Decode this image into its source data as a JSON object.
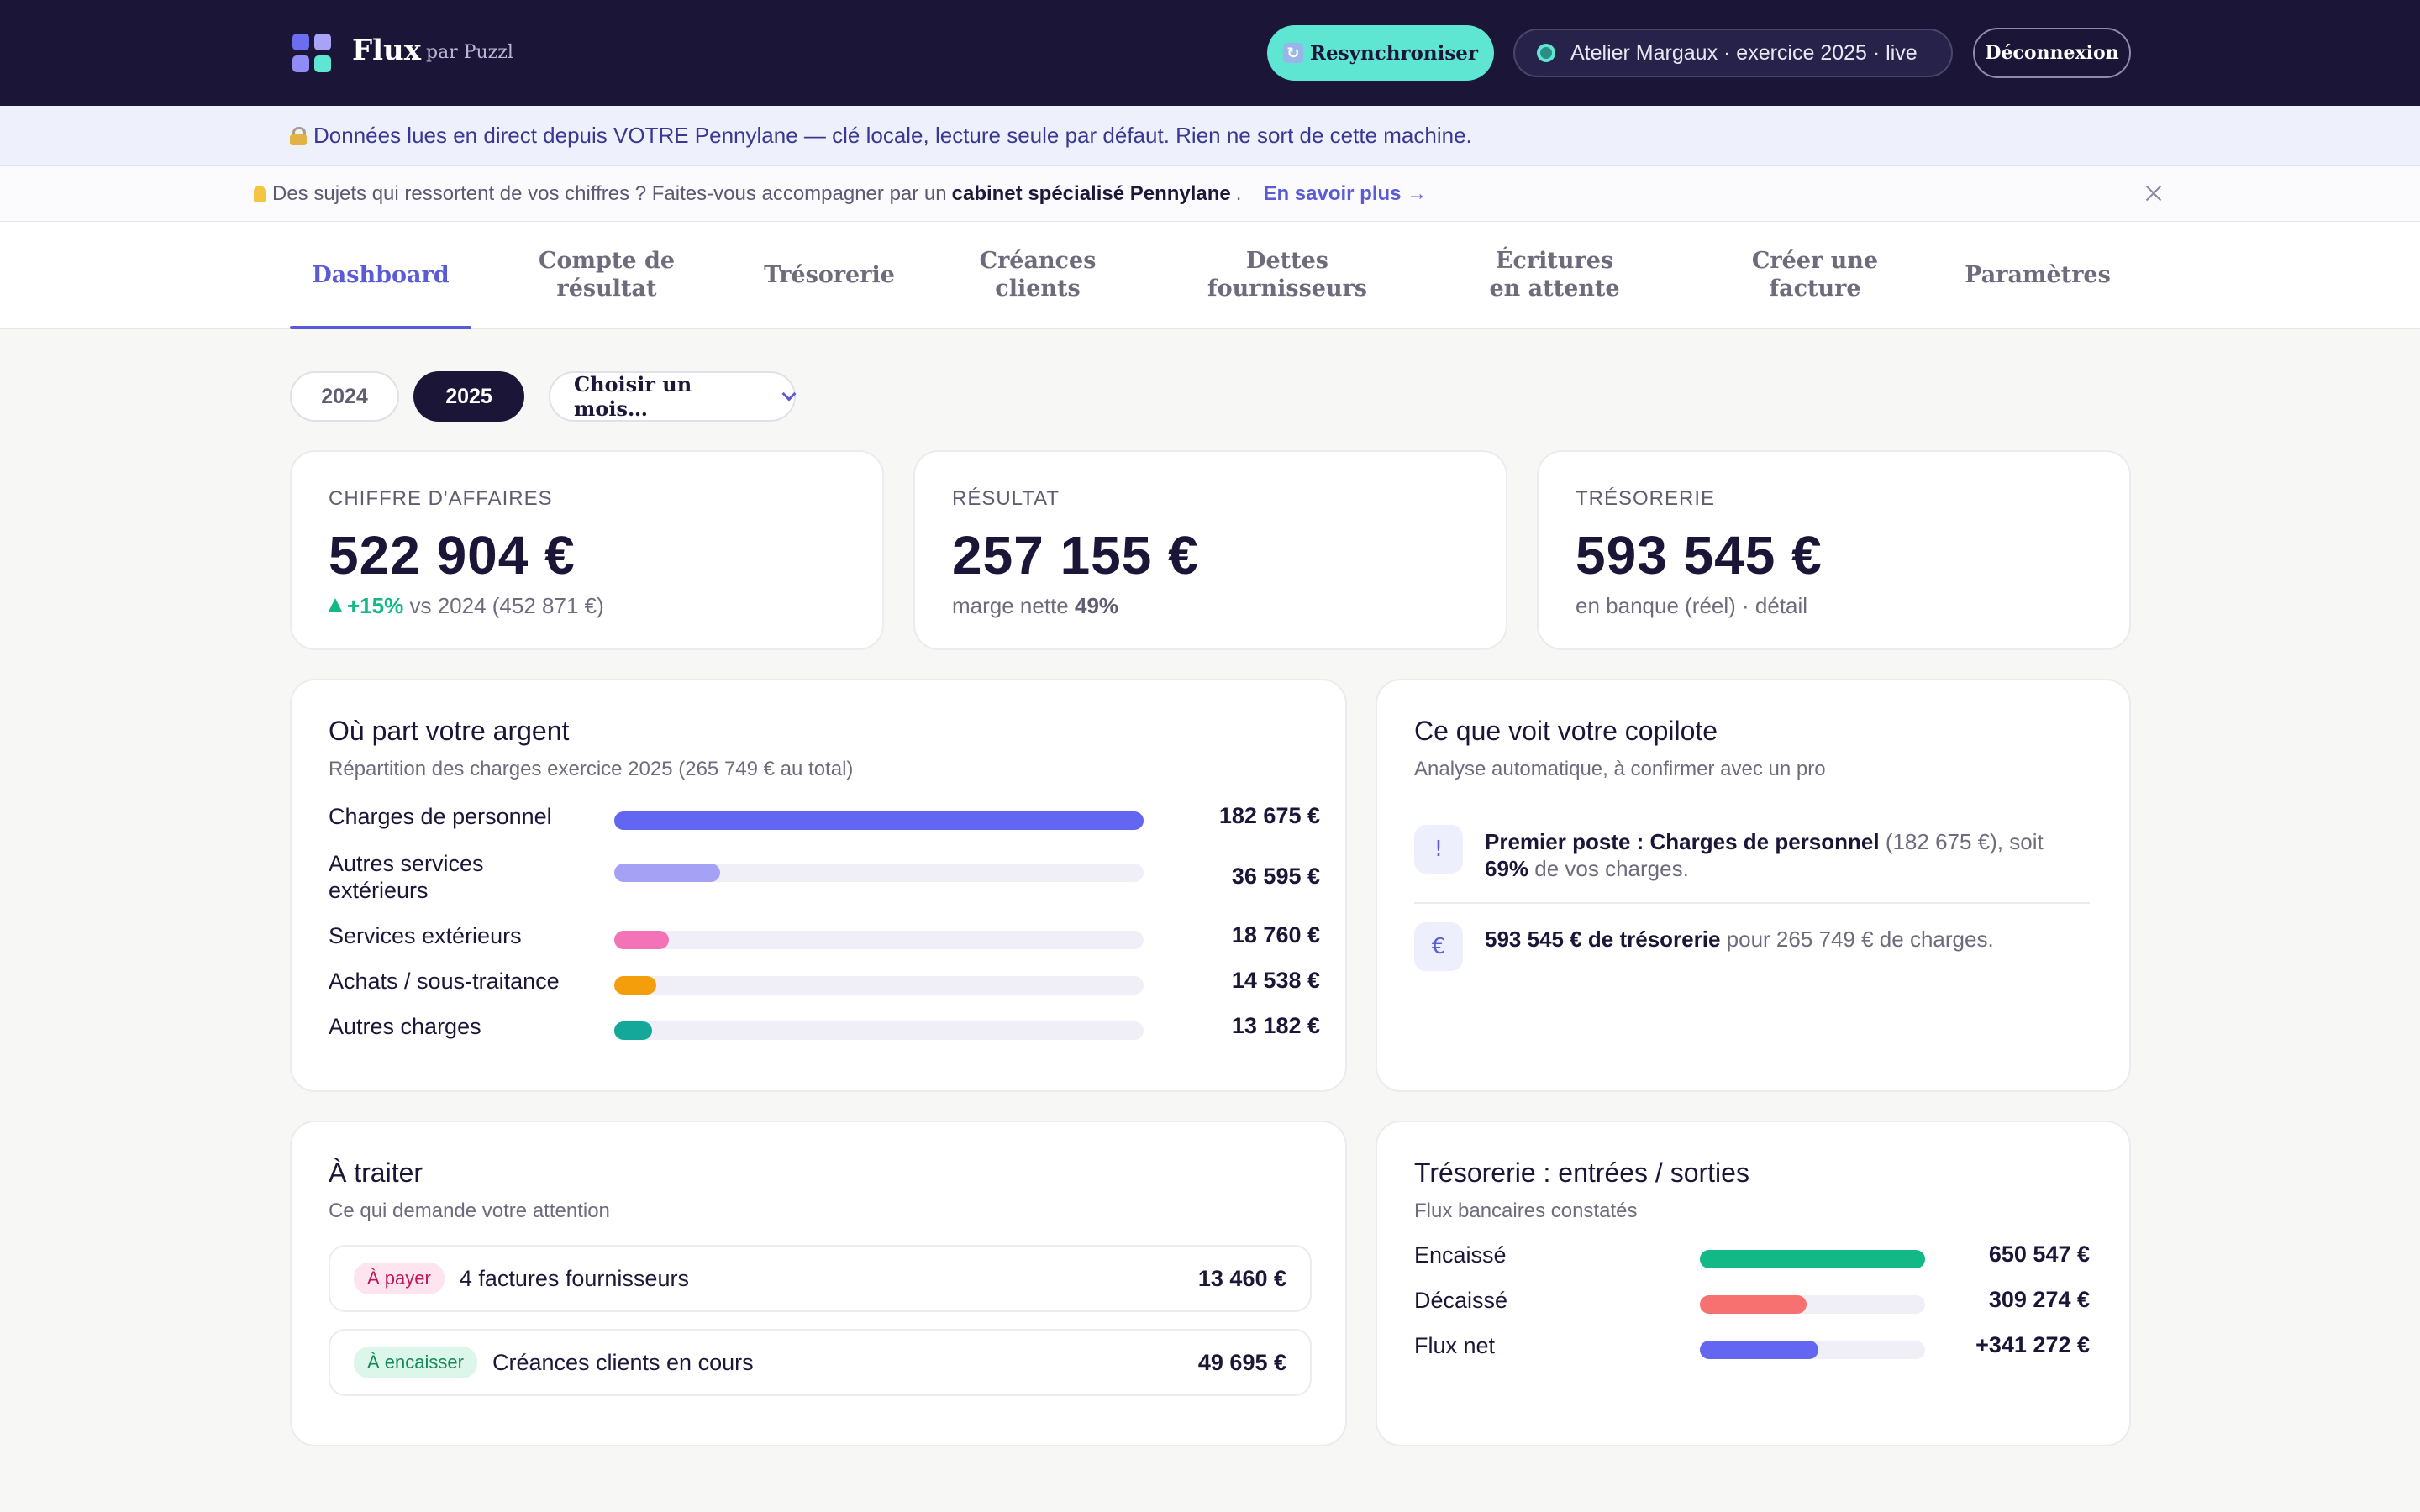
{
  "header": {
    "brand": "Flux",
    "brand_sub": "par Puzzl",
    "logo_colors": [
      "#6d6df0",
      "#a8a3f5",
      "#8f8cf5",
      "#5ee6d3"
    ],
    "resync_label": "Resynchroniser",
    "resync_icon": "refresh-icon",
    "environment": "Atelier Margaux · exercice 2025 · live",
    "logout_label": "Déconnexion"
  },
  "info_banner": {
    "icon": "lock-icon",
    "text": "Données lues en direct depuis VOTRE Pennylane — clé locale, lecture seule par défaut. Rien ne sort de cette machine."
  },
  "promo_banner": {
    "icon": "lightbulb-icon",
    "text_before": "Des sujets qui ressortent de vos chiffres ? Faites-vous accompagner par un",
    "text_bold": "cabinet spécialisé Pennylane",
    "text_after": ".",
    "link": "En savoir plus →"
  },
  "tabs": [
    {
      "label": "Dashboard",
      "active": true
    },
    {
      "label": "Compte de résultat"
    },
    {
      "label": "Trésorerie"
    },
    {
      "label": "Créances clients"
    },
    {
      "label": "Dettes fournisseurs"
    },
    {
      "label": "Écritures en attente"
    },
    {
      "label": "Créer une facture"
    },
    {
      "label": "Paramètres"
    }
  ],
  "filters": {
    "years": [
      "2024",
      "2025"
    ],
    "selected_year": "2025",
    "month_placeholder": "Choisir un mois…"
  },
  "kpis": [
    {
      "label": "CHIFFRE D'AFFAIRES",
      "value": "522 904 €",
      "delta": "+15%",
      "sub": "vs 2024 (452 871 €)"
    },
    {
      "label": "RÉSULTAT",
      "value": "257 155 €",
      "sub": "marge nette",
      "sub_bold": "49%"
    },
    {
      "label": "TRÉSORERIE",
      "value": "593 545 €",
      "sub": "en banque (réel) · détail"
    }
  ],
  "expenses": {
    "title": "Où part votre argent",
    "subtitle": "Répartition des charges exercice 2025 (265 749 € au total)",
    "items": [
      {
        "label": "Charges de personnel",
        "amount": "182 675 €",
        "value": 182675,
        "color": "#6366f1"
      },
      {
        "label": "Autres services extérieurs",
        "amount": "36 595 €",
        "value": 36595,
        "color": "#a5a1f5"
      },
      {
        "label": "Services extérieurs",
        "amount": "18 760 €",
        "value": 18760,
        "color": "#f472b6"
      },
      {
        "label": "Achats / sous-traitance",
        "amount": "14 538 €",
        "value": 14538,
        "color": "#f59e0b"
      },
      {
        "label": "Autres charges",
        "amount": "13 182 €",
        "value": 13182,
        "color": "#14a89a"
      }
    ]
  },
  "copilot": {
    "title": "Ce que voit votre copilote",
    "subtitle": "Analyse automatique, à confirmer avec un pro",
    "insights": [
      {
        "icon": "!",
        "bold": "Premier poste : Charges de personnel",
        "text": " (182 675 €), soit ",
        "bold2": "69%",
        "text2": " de vos charges."
      },
      {
        "icon": "€",
        "bold": "593 545 € de trésorerie",
        "text": " pour 265 749 € de charges.",
        "bold2": "",
        "text2": ""
      }
    ]
  },
  "todo": {
    "title": "À traiter",
    "subtitle": "Ce qui demande votre attention",
    "items": [
      {
        "tag": "À payer",
        "label": "4 factures fournisseurs",
        "amount": "13 460 €"
      },
      {
        "tag": "À encaisser",
        "label": "Créances clients en cours",
        "amount": "49 695 €"
      }
    ]
  },
  "cashflow": {
    "title": "Trésorerie : entrées / sorties",
    "subtitle": "Flux bancaires constatés",
    "items": [
      {
        "label": "Encaissé",
        "amount": "650 547 €",
        "value": 650547,
        "color": "#13b887"
      },
      {
        "label": "Décaissé",
        "amount": "309 274 €",
        "value": 309274,
        "color": "#f87171"
      },
      {
        "label": "Flux net",
        "amount": "+341 272 €",
        "value": 341272,
        "color": "#6366f1"
      }
    ]
  }
}
